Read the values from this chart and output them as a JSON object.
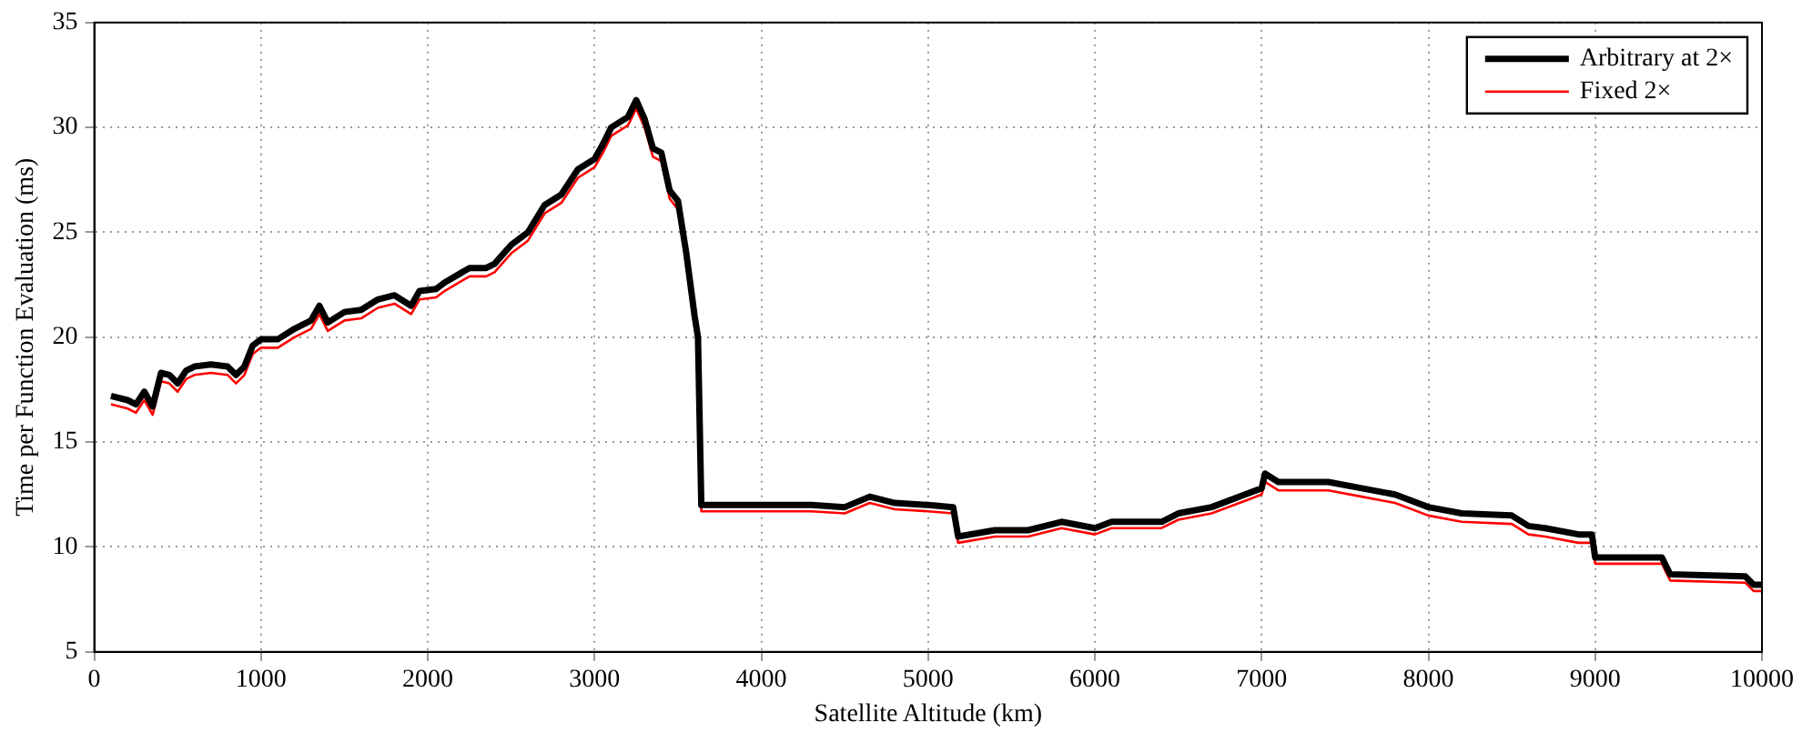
{
  "chart_data": {
    "type": "line",
    "xlabel": "Satellite Altitude (km)",
    "ylabel": "Time per Function Evaluation (ms)",
    "x": [
      100,
      200,
      250,
      300,
      350,
      400,
      450,
      500,
      550,
      600,
      700,
      800,
      850,
      900,
      950,
      1000,
      1100,
      1200,
      1300,
      1350,
      1400,
      1500,
      1600,
      1700,
      1800,
      1900,
      1950,
      2050,
      2100,
      2250,
      2350,
      2400,
      2500,
      2600,
      2700,
      2800,
      2900,
      3000,
      3050,
      3100,
      3200,
      3250,
      3300,
      3350,
      3400,
      3450,
      3500,
      3550,
      3600,
      3620,
      3640,
      3800,
      4000,
      4300,
      4500,
      4650,
      4800,
      5000,
      5150,
      5180,
      5400,
      5600,
      5800,
      6000,
      6100,
      6400,
      6500,
      6700,
      6900,
      7000,
      7020,
      7100,
      7400,
      7600,
      7800,
      8000,
      8200,
      8500,
      8600,
      8700,
      8900,
      8980,
      9000,
      9400,
      9450,
      9900,
      9950,
      10000
    ],
    "series": [
      {
        "name": "Arbitrary at 2×",
        "color": "#000000",
        "values": [
          17.2,
          17.0,
          16.8,
          17.4,
          16.7,
          18.3,
          18.2,
          17.8,
          18.4,
          18.6,
          18.7,
          18.6,
          18.2,
          18.6,
          19.6,
          19.9,
          19.9,
          20.4,
          20.8,
          21.5,
          20.7,
          21.2,
          21.3,
          21.8,
          22.0,
          21.5,
          22.2,
          22.3,
          22.6,
          23.3,
          23.3,
          23.5,
          24.4,
          25.0,
          26.3,
          26.8,
          28.0,
          28.5,
          29.2,
          30.0,
          30.5,
          31.3,
          30.4,
          29.0,
          28.8,
          27.0,
          26.5,
          24.0,
          21.0,
          20.0,
          12.0,
          12.0,
          12.0,
          12.0,
          11.9,
          12.4,
          12.1,
          12.0,
          11.9,
          10.5,
          10.8,
          10.8,
          11.2,
          10.9,
          11.2,
          11.2,
          11.6,
          11.9,
          12.5,
          12.8,
          13.5,
          13.1,
          13.1,
          12.8,
          12.5,
          11.9,
          11.6,
          11.5,
          11.0,
          10.9,
          10.6,
          10.6,
          9.5,
          9.5,
          8.7,
          8.6,
          8.2,
          8.2
        ]
      },
      {
        "name": "Fixed 2×",
        "color": "#ff0000",
        "values": [
          16.8,
          16.6,
          16.4,
          17.0,
          16.3,
          17.9,
          17.8,
          17.4,
          18.0,
          18.2,
          18.3,
          18.2,
          17.8,
          18.2,
          19.2,
          19.5,
          19.5,
          20.0,
          20.4,
          21.1,
          20.3,
          20.8,
          20.9,
          21.4,
          21.6,
          21.1,
          21.8,
          21.9,
          22.2,
          22.9,
          22.9,
          23.1,
          24.0,
          24.6,
          25.9,
          26.4,
          27.6,
          28.1,
          28.8,
          29.6,
          30.1,
          30.9,
          30.0,
          28.6,
          28.4,
          26.6,
          26.1,
          23.6,
          20.6,
          19.6,
          11.7,
          11.7,
          11.7,
          11.7,
          11.6,
          12.1,
          11.8,
          11.7,
          11.6,
          10.2,
          10.5,
          10.5,
          10.9,
          10.6,
          10.9,
          10.9,
          11.3,
          11.6,
          12.2,
          12.5,
          13.1,
          12.7,
          12.7,
          12.4,
          12.1,
          11.5,
          11.2,
          11.1,
          10.6,
          10.5,
          10.2,
          10.2,
          9.2,
          9.2,
          8.4,
          8.3,
          7.9,
          7.9
        ]
      }
    ],
    "xlim": [
      0,
      10000
    ],
    "xticks": [
      0,
      1000,
      2000,
      3000,
      4000,
      5000,
      6000,
      7000,
      8000,
      9000,
      10000
    ],
    "ylim": [
      5,
      35
    ],
    "yticks": [
      5,
      10,
      15,
      20,
      25,
      30,
      35
    ],
    "grid": true,
    "legend": "top right",
    "marker": "none",
    "line_style": "solid"
  }
}
